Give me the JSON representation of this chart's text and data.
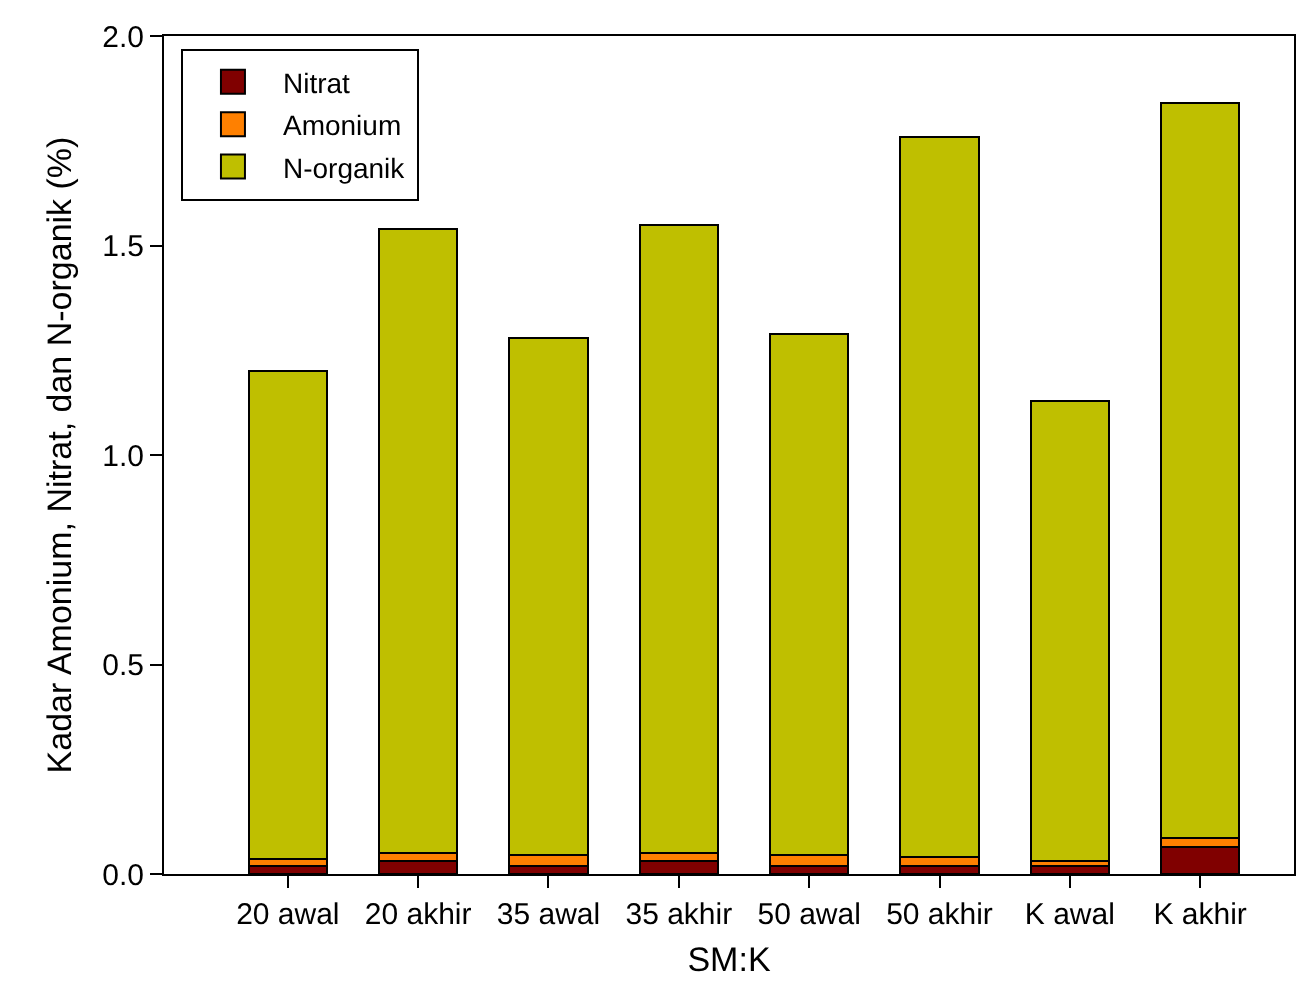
{
  "chart_data": {
    "type": "bar",
    "stacked": true,
    "xlabel": "SM:K",
    "ylabel": "Kadar Amonium, Nitrat, dan N-organik (%)",
    "categories": [
      "20 awal",
      "20 akhir",
      "35 awal",
      "35 akhir",
      "50 awal",
      "50 akhir",
      "K awal",
      "K akhir"
    ],
    "series": [
      {
        "name": "Nitrat",
        "color": "#800000",
        "values": [
          0.02,
          0.03,
          0.02,
          0.03,
          0.02,
          0.02,
          0.02,
          0.065
        ]
      },
      {
        "name": "Amonium",
        "color": "#ff8000",
        "values": [
          0.015,
          0.02,
          0.025,
          0.02,
          0.025,
          0.02,
          0.01,
          0.02
        ]
      },
      {
        "name": "N-organik",
        "color": "#bfbf00",
        "values": [
          1.165,
          1.49,
          1.235,
          1.5,
          1.245,
          1.72,
          1.1,
          1.755
        ]
      }
    ],
    "ylim": [
      0,
      2.0
    ],
    "yticks": [
      {
        "value": 0,
        "label": "0.0"
      },
      {
        "value": 0.5,
        "label": "0.5"
      },
      {
        "value": 1,
        "label": "1.0"
      },
      {
        "value": 1.5,
        "label": "1.5"
      },
      {
        "value": 2,
        "label": "2.0"
      }
    ],
    "grid": false,
    "legend": "top left"
  }
}
